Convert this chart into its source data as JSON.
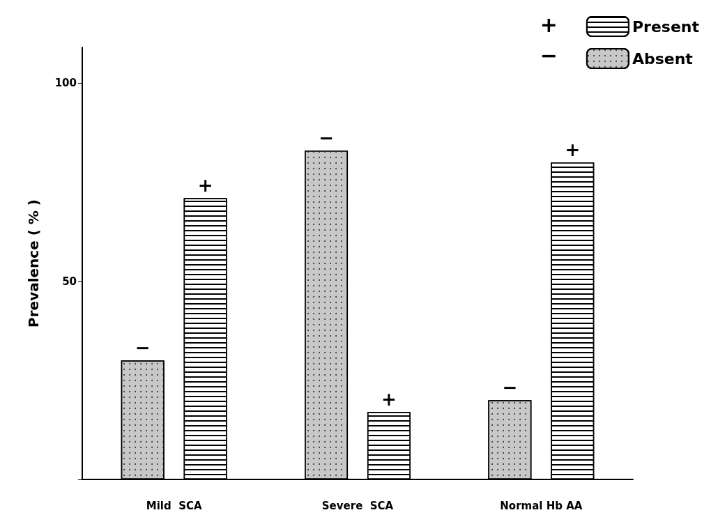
{
  "chart_data": {
    "type": "bar",
    "ylabel": "Prevalence ( % )",
    "categories": [
      "Mild  SCA",
      "Severe  SCA",
      "Normal Hb AA"
    ],
    "series": [
      {
        "name": "Absent",
        "color": "#c8c8c8",
        "values": [
          30,
          83,
          20
        ],
        "value_labels": [
          "−",
          "−",
          "−"
        ]
      },
      {
        "name": "Present",
        "color": "#ffffff",
        "values": [
          71,
          17,
          80
        ],
        "value_labels": [
          "+",
          "+",
          "+"
        ]
      }
    ],
    "ylim": [
      0,
      109
    ],
    "yticks": [
      {
        "value": 0,
        "label": null
      },
      50,
      100
    ],
    "grid": false,
    "legend": "top right"
  }
}
